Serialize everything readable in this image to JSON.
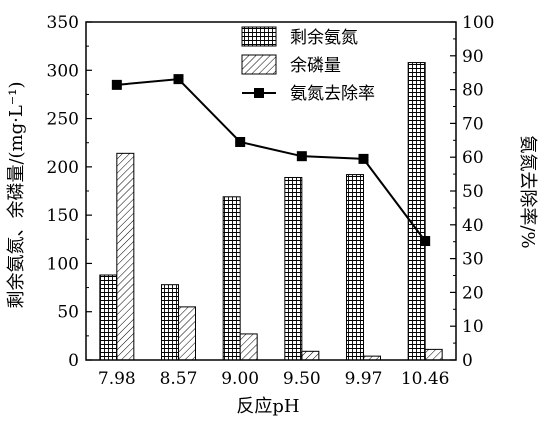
{
  "chart_data": {
    "type": "bar",
    "categories": [
      "7.98",
      "8.57",
      "9.00",
      "9.50",
      "9.97",
      "10.46"
    ],
    "xlabel": "反应pH",
    "ylabel_left": "剩余氨氮、余磷量/(mg·L⁻¹)",
    "ylabel_right": "氨氮去除率/%",
    "ylim_left": [
      0,
      350
    ],
    "yticks_left": [
      0,
      50,
      100,
      150,
      200,
      250,
      300,
      350
    ],
    "ylim_right": [
      0,
      100
    ],
    "yticks_right": [
      0,
      10,
      20,
      30,
      40,
      50,
      60,
      70,
      80,
      90,
      100
    ],
    "grid": false,
    "legend_position": "top-center",
    "series": [
      {
        "name": "剩余氨氮",
        "kind": "bar",
        "axis": "left",
        "pattern": "grid",
        "values": [
          88,
          78,
          169,
          189,
          192,
          308
        ]
      },
      {
        "name": "余磷量",
        "kind": "bar",
        "axis": "left",
        "pattern": "diagonal",
        "values": [
          214,
          55,
          27,
          9,
          4,
          11
        ]
      },
      {
        "name": "氨氮去除率",
        "kind": "line",
        "axis": "right",
        "marker": "square",
        "values": [
          81.4,
          83.1,
          64.5,
          60.3,
          59.5,
          35.2
        ]
      }
    ]
  }
}
